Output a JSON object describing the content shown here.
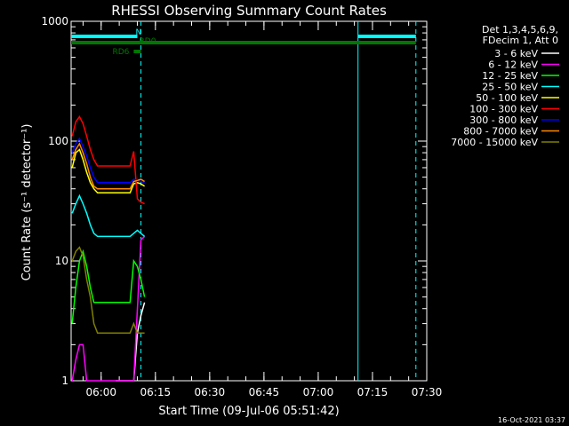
{
  "chart_data": {
    "type": "line",
    "title": "RHESSI Observing Summary Count Rates",
    "xlabel": "Start Time (09-Jul-06 05:51:42)",
    "ylabel": "Count Rate (s⁻¹ detector⁻¹)",
    "yscale": "log",
    "ylim": [
      1,
      1000
    ],
    "xlim": [
      "05:51:42",
      "07:30:00"
    ],
    "x_ticks": [
      "06:00",
      "06:15",
      "06:30",
      "06:45",
      "07:00",
      "07:15",
      "07:30"
    ],
    "y_ticks": [
      "1",
      "10",
      "100",
      "1000"
    ],
    "legend_header": [
      "Det 1,3,4,5,6,9,",
      "FDecim 1, Att 0"
    ],
    "legend_position": "top-right",
    "series": [
      {
        "name": "3 - 6 keV",
        "color": "#ffffff",
        "x": [
          "06:04",
          "06:06",
          "06:08",
          "06:09",
          "06:10",
          "06:11",
          "06:12"
        ],
        "y": [
          1.0,
          1.0,
          1.0,
          1.0,
          2.5,
          3.5,
          4.5
        ]
      },
      {
        "name": "6 - 12 keV",
        "color": "#ff00ff",
        "x": [
          "05:52",
          "05:53",
          "05:54",
          "05:55",
          "05:56",
          "05:57",
          "06:00",
          "06:05",
          "06:09",
          "06:11",
          "06:12"
        ],
        "y": [
          1.0,
          1.5,
          2.0,
          2.0,
          1.0,
          1.0,
          1.0,
          1.0,
          1.0,
          15,
          16
        ]
      },
      {
        "name": "12 - 25 keV",
        "color": "#00ff00",
        "x": [
          "05:52",
          "05:53",
          "05:54",
          "05:55",
          "05:56",
          "05:57",
          "05:58",
          "06:00",
          "06:04",
          "06:08",
          "06:09",
          "06:10",
          "06:11",
          "06:12"
        ],
        "y": [
          3,
          6,
          10,
          12,
          9,
          6,
          4.5,
          4.5,
          4.5,
          4.5,
          10,
          9,
          7,
          5
        ]
      },
      {
        "name": "25 - 50 keV",
        "color": "#00ffff",
        "x": [
          "05:52",
          "05:53",
          "05:54",
          "05:55",
          "05:56",
          "05:57",
          "05:58",
          "05:59",
          "06:00",
          "06:04",
          "06:08",
          "06:09",
          "06:10",
          "06:11",
          "06:12"
        ],
        "y": [
          25,
          30,
          35,
          30,
          25,
          20,
          17,
          16,
          16,
          16,
          16,
          17,
          18,
          17,
          16
        ]
      },
      {
        "name": "50 - 100 keV",
        "color": "#ffff00",
        "x": [
          "05:52",
          "05:53",
          "05:54",
          "05:55",
          "05:56",
          "05:57",
          "05:58",
          "05:59",
          "06:00",
          "06:04",
          "06:08",
          "06:09",
          "06:10",
          "06:11",
          "06:12"
        ],
        "y": [
          60,
          80,
          85,
          70,
          55,
          45,
          40,
          37,
          37,
          37,
          37,
          44,
          45,
          44,
          42
        ]
      },
      {
        "name": "100 - 300 keV",
        "color": "#ff0000",
        "x": [
          "05:52",
          "05:53",
          "05:54",
          "05:55",
          "05:56",
          "05:57",
          "05:58",
          "05:59",
          "06:00",
          "06:04",
          "06:08",
          "06:09",
          "06:10",
          "06:11",
          "06:12"
        ],
        "y": [
          110,
          145,
          160,
          140,
          110,
          85,
          70,
          62,
          62,
          62,
          62,
          82,
          33,
          31,
          30
        ]
      },
      {
        "name": "300 - 800 keV",
        "color": "#0000ff",
        "x": [
          "05:52",
          "05:53",
          "05:54",
          "05:55",
          "05:56",
          "05:57",
          "05:58",
          "05:59",
          "06:00",
          "06:04",
          "06:08",
          "06:09",
          "06:10",
          "06:11",
          "06:12"
        ],
        "y": [
          80,
          95,
          105,
          90,
          75,
          60,
          50,
          45,
          45,
          45,
          45,
          48,
          47,
          46,
          45
        ]
      },
      {
        "name": "800 - 7000 keV",
        "color": "#ff8800",
        "x": [
          "05:52",
          "05:53",
          "05:54",
          "05:55",
          "05:56",
          "05:57",
          "05:58",
          "05:59",
          "06:00",
          "06:04",
          "06:08",
          "06:09",
          "06:10",
          "06:11",
          "06:12"
        ],
        "y": [
          70,
          85,
          95,
          80,
          65,
          50,
          42,
          40,
          40,
          40,
          40,
          46,
          47,
          48,
          46
        ]
      },
      {
        "name": "7000 - 15000 keV",
        "color": "#808000",
        "x": [
          "05:52",
          "05:53",
          "05:54",
          "05:55",
          "05:56",
          "05:57",
          "05:58",
          "05:59",
          "06:00",
          "06:04",
          "06:08",
          "06:09",
          "06:10",
          "06:11",
          "06:12"
        ],
        "y": [
          10,
          12,
          13,
          11,
          7,
          5,
          3,
          2.5,
          2.5,
          2.5,
          2.5,
          3,
          2.5,
          2.5,
          2.5
        ]
      }
    ],
    "flags": [
      {
        "label": "N",
        "color": "#00ffff",
        "x_start": "05:51:42",
        "x_end": "06:10",
        "level": 1
      },
      {
        "label": "",
        "color": "#00ffff",
        "x_start": "07:11",
        "x_end": "07:27",
        "level": 1
      },
      {
        "label": "RD0",
        "color": "#007700",
        "x_start": "05:51:42",
        "x_end": "07:27",
        "level": 2
      },
      {
        "label": "RD6",
        "color": "#007700",
        "x_start": "06:09",
        "x_end": "06:11",
        "level": 3
      }
    ],
    "vlines": [
      {
        "x": "06:11",
        "color": "#00ffff",
        "style": "dashed"
      },
      {
        "x": "07:11",
        "color": "#00ffff",
        "style": "solid"
      },
      {
        "x": "07:27",
        "color": "#00ffff",
        "style": "dashed"
      }
    ]
  },
  "footer_timestamp": "16-Oct-2021 03:37"
}
